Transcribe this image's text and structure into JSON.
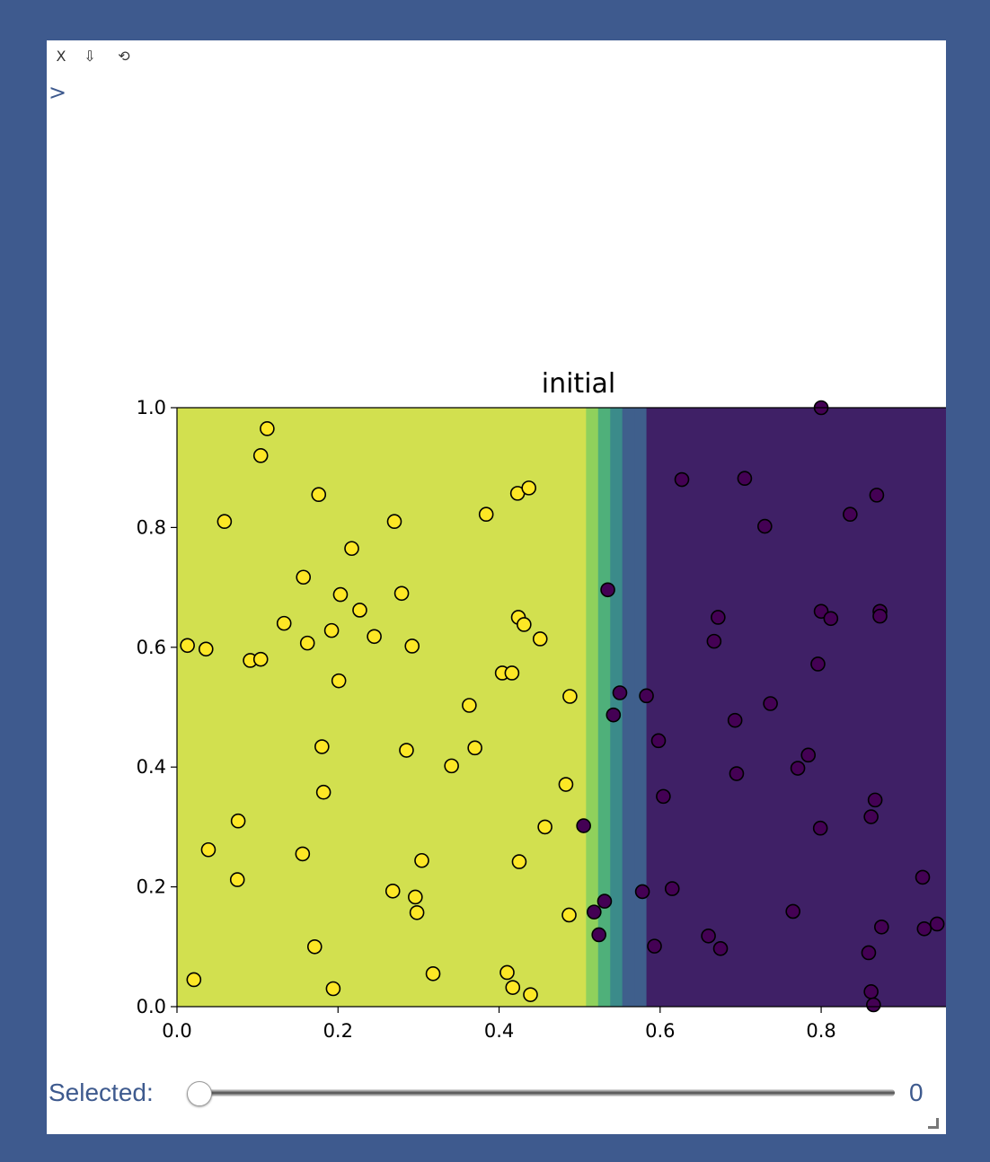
{
  "toolbar": {
    "close_label": "X",
    "download_label": "⇩",
    "reset_label": "⟲"
  },
  "prompt_symbol": ">",
  "slider": {
    "label": "Selected:",
    "value": "0",
    "fraction": 0
  },
  "colors": {
    "background": "#3e5a8e",
    "class_0_region": "#d2e04f",
    "class_1_region": "#3f2066",
    "class_0_point": "#fde725",
    "class_1_point": "#440154",
    "transition_bands": [
      "#8fd15c",
      "#4fb07a",
      "#3b8b8a",
      "#3f5f8c"
    ]
  },
  "chart_data": {
    "type": "scatter",
    "title": "initial",
    "xlim": [
      0.0,
      0.955
    ],
    "ylim": [
      0.0,
      1.0
    ],
    "x_ticks": [
      "0.0",
      "0.2",
      "0.4",
      "0.6",
      "0.8"
    ],
    "y_ticks": [
      "0.0",
      "0.2",
      "0.4",
      "0.6",
      "0.8",
      "1.0"
    ],
    "decision_regions": [
      {
        "x_from": 0.0,
        "x_to": 0.508,
        "class": 0
      },
      {
        "x_from": 0.508,
        "x_to": 0.523,
        "band": 0
      },
      {
        "x_from": 0.523,
        "x_to": 0.538,
        "band": 1
      },
      {
        "x_from": 0.538,
        "x_to": 0.553,
        "band": 2
      },
      {
        "x_from": 0.553,
        "x_to": 0.568,
        "band": 3
      },
      {
        "x_from": 0.568,
        "x_to": 0.583,
        "band": 3
      },
      {
        "x_from": 0.583,
        "x_to": 0.955,
        "class": 1
      }
    ],
    "series": [
      {
        "class": 0,
        "points": [
          [
            0.112,
            0.965
          ],
          [
            0.104,
            0.92
          ],
          [
            0.176,
            0.855
          ],
          [
            0.059,
            0.81
          ],
          [
            0.27,
            0.81
          ],
          [
            0.217,
            0.765
          ],
          [
            0.157,
            0.717
          ],
          [
            0.203,
            0.688
          ],
          [
            0.279,
            0.69
          ],
          [
            0.227,
            0.662
          ],
          [
            0.133,
            0.64
          ],
          [
            0.192,
            0.628
          ],
          [
            0.245,
            0.618
          ],
          [
            0.162,
            0.607
          ],
          [
            0.013,
            0.603
          ],
          [
            0.036,
            0.597
          ],
          [
            0.292,
            0.602
          ],
          [
            0.091,
            0.578
          ],
          [
            0.104,
            0.58
          ],
          [
            0.201,
            0.544
          ],
          [
            0.384,
            0.822
          ],
          [
            0.423,
            0.857
          ],
          [
            0.437,
            0.866
          ],
          [
            0.424,
            0.65
          ],
          [
            0.431,
            0.638
          ],
          [
            0.451,
            0.614
          ],
          [
            0.404,
            0.557
          ],
          [
            0.416,
            0.557
          ],
          [
            0.488,
            0.518
          ],
          [
            0.363,
            0.503
          ],
          [
            0.18,
            0.434
          ],
          [
            0.285,
            0.428
          ],
          [
            0.37,
            0.432
          ],
          [
            0.341,
            0.402
          ],
          [
            0.182,
            0.358
          ],
          [
            0.483,
            0.371
          ],
          [
            0.076,
            0.31
          ],
          [
            0.457,
            0.3
          ],
          [
            0.039,
            0.262
          ],
          [
            0.156,
            0.255
          ],
          [
            0.304,
            0.244
          ],
          [
            0.425,
            0.242
          ],
          [
            0.075,
            0.212
          ],
          [
            0.268,
            0.193
          ],
          [
            0.296,
            0.183
          ],
          [
            0.298,
            0.157
          ],
          [
            0.487,
            0.153
          ],
          [
            0.171,
            0.1
          ],
          [
            0.318,
            0.055
          ],
          [
            0.41,
            0.057
          ],
          [
            0.021,
            0.045
          ],
          [
            0.194,
            0.03
          ],
          [
            0.417,
            0.032
          ],
          [
            0.439,
            0.02
          ]
        ]
      },
      {
        "class": 1,
        "points": [
          [
            0.535,
            0.696
          ],
          [
            0.55,
            0.524
          ],
          [
            0.583,
            0.519
          ],
          [
            0.542,
            0.487
          ],
          [
            0.505,
            0.302
          ],
          [
            0.531,
            0.176
          ],
          [
            0.518,
            0.158
          ],
          [
            0.524,
            0.12
          ],
          [
            0.627,
            0.88
          ],
          [
            0.705,
            0.882
          ],
          [
            0.73,
            0.802
          ],
          [
            0.836,
            0.822
          ],
          [
            0.869,
            0.854
          ],
          [
            0.8,
            1.0
          ],
          [
            0.672,
            0.65
          ],
          [
            0.667,
            0.61
          ],
          [
            0.8,
            0.66
          ],
          [
            0.812,
            0.648
          ],
          [
            0.873,
            0.66
          ],
          [
            0.873,
            0.652
          ],
          [
            0.796,
            0.572
          ],
          [
            0.737,
            0.506
          ],
          [
            0.693,
            0.478
          ],
          [
            0.598,
            0.444
          ],
          [
            0.784,
            0.42
          ],
          [
            0.771,
            0.398
          ],
          [
            0.695,
            0.389
          ],
          [
            0.604,
            0.351
          ],
          [
            0.867,
            0.345
          ],
          [
            0.862,
            0.317
          ],
          [
            0.799,
            0.298
          ],
          [
            0.578,
            0.192
          ],
          [
            0.615,
            0.197
          ],
          [
            0.926,
            0.216
          ],
          [
            0.765,
            0.159
          ],
          [
            0.875,
            0.133
          ],
          [
            0.928,
            0.13
          ],
          [
            0.944,
            0.138
          ],
          [
            0.66,
            0.118
          ],
          [
            0.675,
            0.097
          ],
          [
            0.593,
            0.101
          ],
          [
            0.859,
            0.09
          ],
          [
            0.862,
            0.025
          ],
          [
            0.865,
            0.003
          ]
        ]
      }
    ]
  }
}
